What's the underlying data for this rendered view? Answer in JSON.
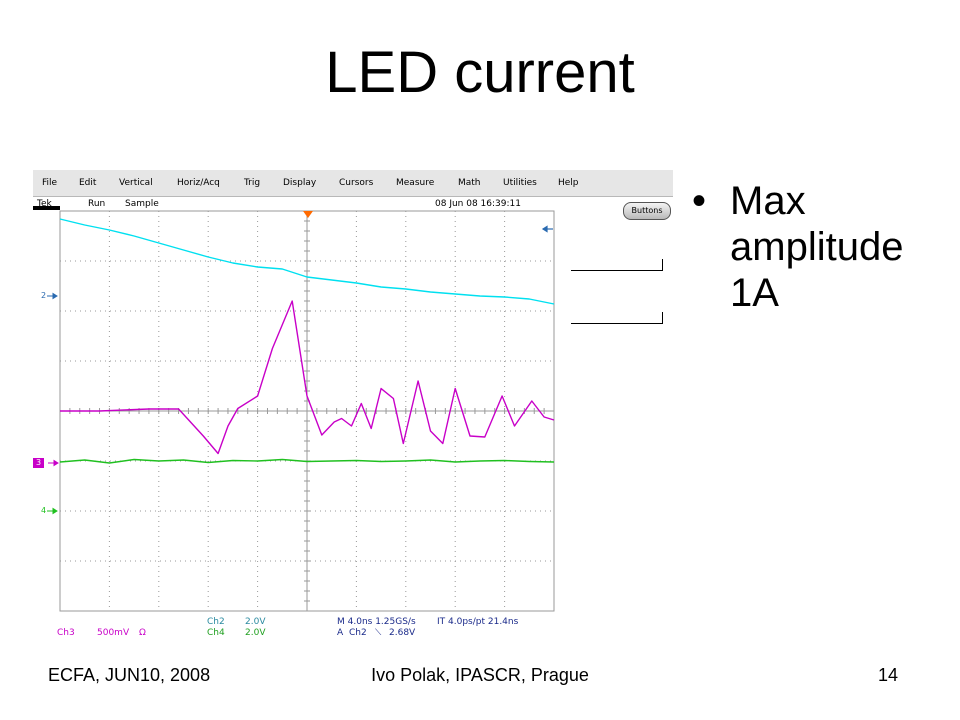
{
  "slide": {
    "title": "LED current",
    "bullet": "Max amplitude 1A",
    "footer_left": "ECFA, JUN10, 2008",
    "footer_center": "Ivo Polak, IPASCR, Prague",
    "page_number": "14"
  },
  "scope": {
    "menu": [
      "File",
      "Edit",
      "Vertical",
      "Horiz/Acq",
      "Trig",
      "Display",
      "Cursors",
      "Measure",
      "Math",
      "Utilities",
      "Help"
    ],
    "status": {
      "brand": "Tek",
      "run": "Run",
      "mode": "Sample",
      "timestamp": "08 Jun 08 16:39:11"
    },
    "buttons_label": "Buttons",
    "markers": {
      "ch2": "2",
      "ch3": "3",
      "ch4": "4"
    },
    "readouts": {
      "ch3_name": "Ch3",
      "ch3_scale": "500mV",
      "ch3_coupling": "Ω",
      "ch2_name": "Ch2",
      "ch2_scale": "2.0V",
      "ch4_name": "Ch4",
      "ch4_scale": "2.0V",
      "horizontal": "M 4.0ns 1.25GS/s",
      "interpolation": "IT 4.0ps/pt 21.4ns",
      "trigger_prefix": "A",
      "trigger_source": "Ch2",
      "trigger_slope": "⟍",
      "trigger_level": "2.68V"
    },
    "colors": {
      "ch2": "#00e0f0",
      "ch3": "#c800c8",
      "ch4": "#20c020",
      "grid": "#9a9a9a",
      "menubar": "#e6e6e6",
      "trigger_marker": "#ff6a00"
    },
    "grid": {
      "horizontal_divisions": 10,
      "vertical_divisions": 8,
      "minor_per_division": 5
    }
  },
  "chart_data": {
    "type": "line",
    "title": "",
    "xlabel": "",
    "ylabel": "",
    "x_divisions": 10,
    "y_divisions": 8,
    "series": [
      {
        "name": "Ch2",
        "color": "#00e0f0",
        "x": [
          0,
          0.5,
          1,
          1.5,
          2,
          2.5,
          3,
          3.5,
          4,
          4.5,
          5,
          5.5,
          6,
          6.5,
          7,
          7.5,
          8,
          8.5,
          9,
          9.5,
          10
        ],
        "y": [
          3.84,
          3.72,
          3.62,
          3.5,
          3.36,
          3.22,
          3.08,
          2.96,
          2.88,
          2.84,
          2.68,
          2.62,
          2.56,
          2.48,
          2.44,
          2.38,
          2.34,
          2.3,
          2.28,
          2.24,
          2.14
        ]
      },
      {
        "name": "Ch3",
        "color": "#c800c8",
        "x": [
          0,
          0.8,
          1.8,
          2.4,
          2.9,
          3.2,
          3.4,
          3.6,
          4.0,
          4.3,
          4.7,
          5.0,
          5.3,
          5.55,
          5.7,
          5.9,
          6.1,
          6.3,
          6.5,
          6.75,
          6.95,
          7.25,
          7.5,
          7.75,
          8.0,
          8.3,
          8.6,
          8.95,
          9.2,
          9.55,
          9.8,
          10
        ],
        "y": [
          0,
          0,
          0.04,
          0.04,
          -0.5,
          -0.85,
          -0.3,
          0.05,
          0.3,
          1.25,
          2.2,
          0.3,
          -0.48,
          -0.22,
          -0.15,
          -0.3,
          0.15,
          -0.35,
          0.45,
          0.25,
          -0.65,
          0.6,
          -0.4,
          -0.65,
          0.45,
          -0.5,
          -0.52,
          0.3,
          -0.3,
          0.2,
          -0.12,
          -0.18
        ]
      },
      {
        "name": "Ch4",
        "color": "#20c020",
        "x": [
          0,
          0.5,
          1,
          1.5,
          2,
          2.5,
          3,
          3.5,
          4,
          4.5,
          5,
          5.5,
          6,
          6.5,
          7,
          7.5,
          8,
          8.5,
          9,
          9.5,
          10
        ],
        "y": [
          -1.02,
          -0.98,
          -1.04,
          -0.97,
          -1.0,
          -0.98,
          -1.03,
          -0.99,
          -1.0,
          -0.97,
          -1.01,
          -1.0,
          -0.99,
          -1.01,
          -1.0,
          -0.98,
          -1.02,
          -1.0,
          -0.99,
          -1.01,
          -1.02
        ]
      }
    ]
  }
}
